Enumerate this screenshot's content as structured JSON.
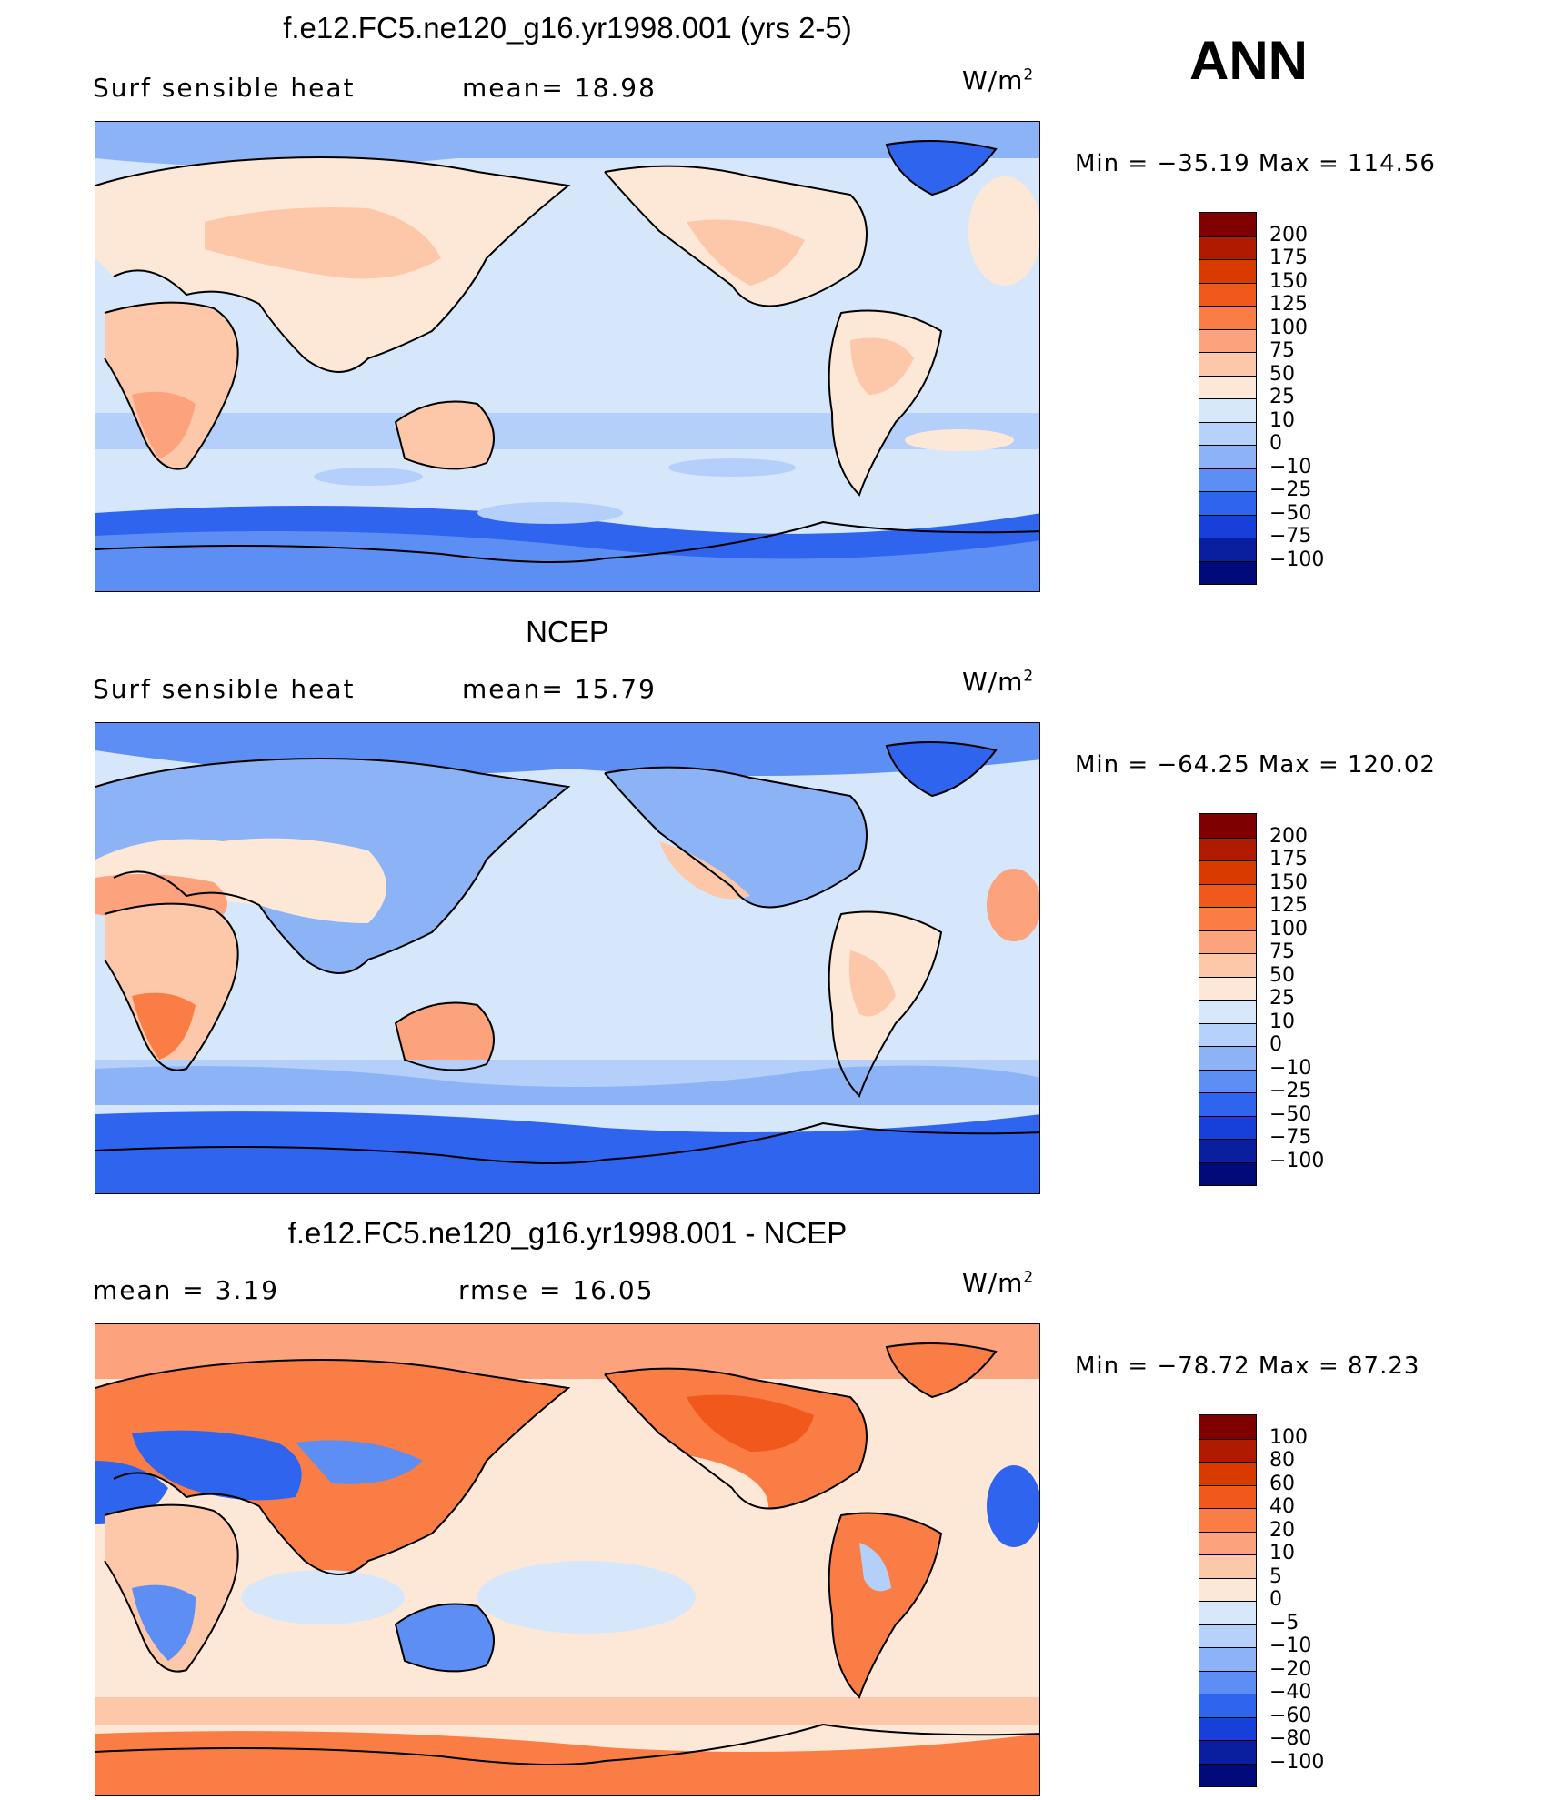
{
  "season": "ANN",
  "units_base": "W/m",
  "units_exp": "2",
  "panels": [
    {
      "title": "f.e12.FC5.ne120_g16.yr1998.001 (yrs 2-5)",
      "left_label": "Surf  sensible  heat",
      "mid_label": "mean=   18.98",
      "minmax": "Min  =  −35.19  Max  =  114.56",
      "levels": [
        "200",
        "175",
        "150",
        "125",
        "100",
        "75",
        "50",
        "25",
        "10",
        "0",
        "−10",
        "−25",
        "−50",
        "−75",
        "−100"
      ]
    },
    {
      "title": "NCEP",
      "left_label": "Surf  sensible  heat",
      "mid_label": "mean=   15.79",
      "minmax": "Min  =  −64.25  Max  =  120.02",
      "levels": [
        "200",
        "175",
        "150",
        "125",
        "100",
        "75",
        "50",
        "25",
        "10",
        "0",
        "−10",
        "−25",
        "−50",
        "−75",
        "−100"
      ]
    },
    {
      "title": "f.e12.FC5.ne120_g16.yr1998.001 - NCEP",
      "left_label": "mean  =     3.19",
      "mid_label": "rmse  =    16.05",
      "minmax": "Min  =  −78.72  Max  =   87.23",
      "levels": [
        "100",
        "80",
        "60",
        "40",
        "20",
        "10",
        "5",
        "0",
        "−5",
        "−10",
        "−20",
        "−40",
        "−60",
        "−80",
        "−100"
      ]
    }
  ],
  "colorbar_colors": [
    "#7f0000",
    "#b01a00",
    "#d93a00",
    "#f0581c",
    "#fb7d46",
    "#fca27c",
    "#fdc8aa",
    "#fde8d8",
    "#d8e8fb",
    "#b6d1fa",
    "#8cb3f6",
    "#5c8ef3",
    "#2f64ef",
    "#1640d9",
    "#0a1f9e",
    "#000a78"
  ],
  "map_colors": {
    "ocean_light": "#d6e7fb",
    "ocean_mid": "#b4cff9",
    "cool": "#8cb3f6",
    "cold": "#5c8ef3",
    "very_cold": "#2f64ef",
    "warm_light": "#fde8d8",
    "warm": "#fdc8aa",
    "hot": "#fca27c",
    "hotter": "#fb7d46",
    "diff_red": "#f0581c"
  }
}
